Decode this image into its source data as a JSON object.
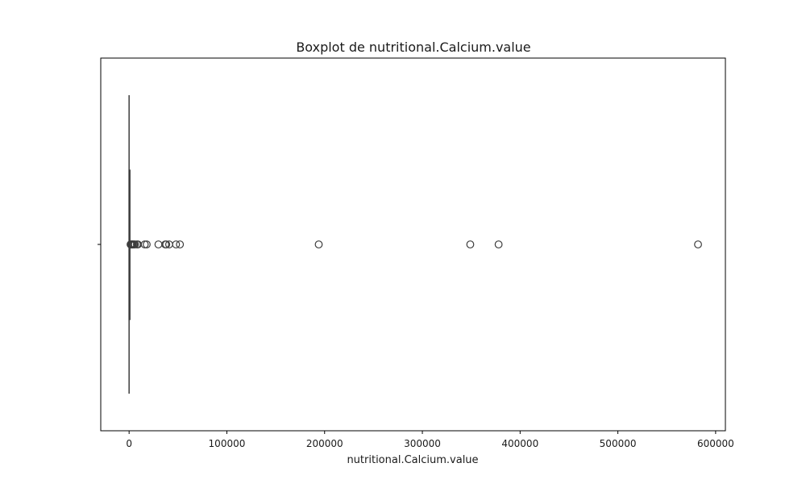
{
  "chart_data": {
    "type": "boxplot",
    "title": "Boxplot de nutritional.Calcium.value",
    "xlabel": "nutritional.Calcium.value",
    "ylabel": "",
    "orientation": "horizontal",
    "xlim": [
      -29000,
      610000
    ],
    "x_ticks": [
      0,
      100000,
      200000,
      300000,
      400000,
      500000,
      600000
    ],
    "x_tick_labels": [
      "0",
      "100000",
      "200000",
      "300000",
      "400000",
      "500000",
      "600000"
    ],
    "grid": false,
    "box": {
      "whisker_low": 0,
      "q1": 0,
      "median": 100,
      "q3": 600,
      "whisker_high": 1400
    },
    "outliers": [
      1500,
      2000,
      2500,
      3000,
      3500,
      4000,
      5000,
      6000,
      8000,
      9000,
      16000,
      18000,
      30000,
      37000,
      38000,
      41000,
      48000,
      52000,
      194000,
      349000,
      378000,
      582000
    ],
    "colors": {
      "box": "#3d3d3d",
      "frame": "#000000"
    }
  }
}
